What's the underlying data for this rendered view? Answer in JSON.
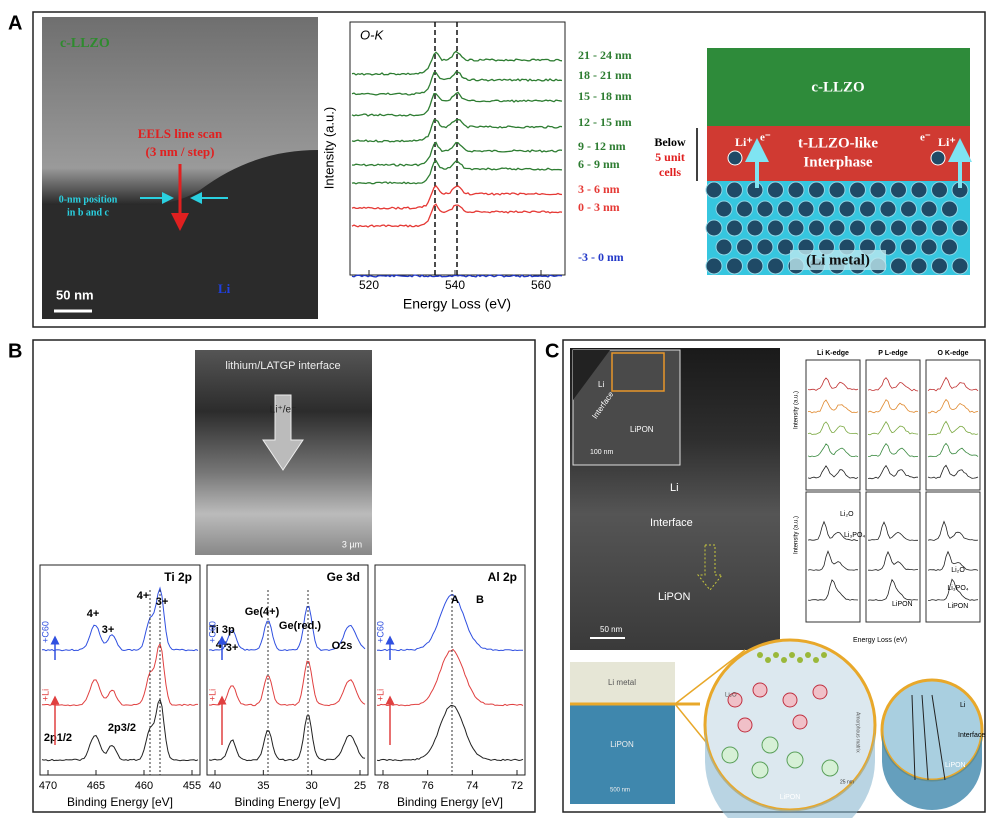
{
  "panel_a": {
    "label": "A",
    "tem": {
      "title": "c-LLZO",
      "scan": [
        "EELS line scan",
        "(3 nm / step)"
      ],
      "position": [
        "0-nm position",
        "in b and c"
      ],
      "li": "Li",
      "scale": "50 nm"
    },
    "spectrum": {
      "title": "O-K",
      "y_label": "Intensity (a.u.)",
      "x_label": "Energy Loss (eV)",
      "x_ticks": [
        "520",
        "540",
        "560"
      ],
      "traces": [
        "21 - 24 nm",
        "18 - 21 nm",
        "15 - 18 nm",
        "12 - 15 nm",
        "9 - 12 nm",
        "6 - 9 nm",
        "3 - 6 nm",
        "0 - 3 nm",
        "-3 - 0 nm"
      ]
    },
    "schematic": {
      "top": "c-LLZO",
      "middle": [
        "t-LLZO-like",
        "Interphase"
      ],
      "bottom": "(Li metal)",
      "thickness": [
        "Below",
        "5 unit",
        "cells"
      ],
      "ion": "Li⁺",
      "electron": "e⁻"
    }
  },
  "panel_b": {
    "label": "B",
    "sem": {
      "title": "lithium/LATGP interface",
      "arrow": "Li⁺/e⁻",
      "scale": "3 µm"
    },
    "plots": [
      {
        "title": "Ti 2p",
        "x_ticks": [
          "470",
          "465",
          "460",
          "455"
        ],
        "x_label": "Binding Energy [eV]",
        "annotations": [
          "4+",
          "3+",
          "4+",
          "3+",
          "2p3/2",
          "2p1/2"
        ],
        "traces": [
          "+C60",
          "+Li"
        ]
      },
      {
        "title": "Ge 3d",
        "x_ticks": [
          "40",
          "35",
          "30",
          "25"
        ],
        "x_label": "Binding Energy [eV]",
        "annotations": [
          "Ge(4+)",
          "Ge(red.)",
          "Ti 3p",
          "4+",
          "3+",
          "O2s"
        ],
        "traces": [
          "+C60",
          "+Li"
        ]
      },
      {
        "title": "Al 2p",
        "x_ticks": [
          "78",
          "76",
          "74",
          "72"
        ],
        "x_label": "Binding Energy [eV]",
        "annotations": [
          "A",
          "B"
        ],
        "traces": [
          "+C60",
          "+Li"
        ]
      }
    ]
  },
  "panel_c": {
    "label": "C",
    "tem": {
      "inset": [
        "Li",
        "Interface",
        "LiPON",
        "100 nm"
      ],
      "main": [
        "Li",
        "Interface",
        "LiPON",
        "50 nm"
      ]
    },
    "eels": {
      "edges": [
        "Li K-edge",
        "P L-edge",
        "O K-edge"
      ],
      "y_label": "Intensity (a.u.)",
      "x_label": "Energy Loss (eV)",
      "refs": [
        "Li₂O",
        "Li₃PO₄",
        "LiPON"
      ]
    },
    "schematic": {
      "layers": [
        "Li metal",
        "LiPON"
      ],
      "scale": "500 nm",
      "zoom1": [
        "Li₂O",
        "Amorphous matrix",
        "LiPON",
        "25 nm"
      ],
      "zoom2": [
        "Li",
        "Interface",
        "LiPON"
      ]
    }
  }
}
